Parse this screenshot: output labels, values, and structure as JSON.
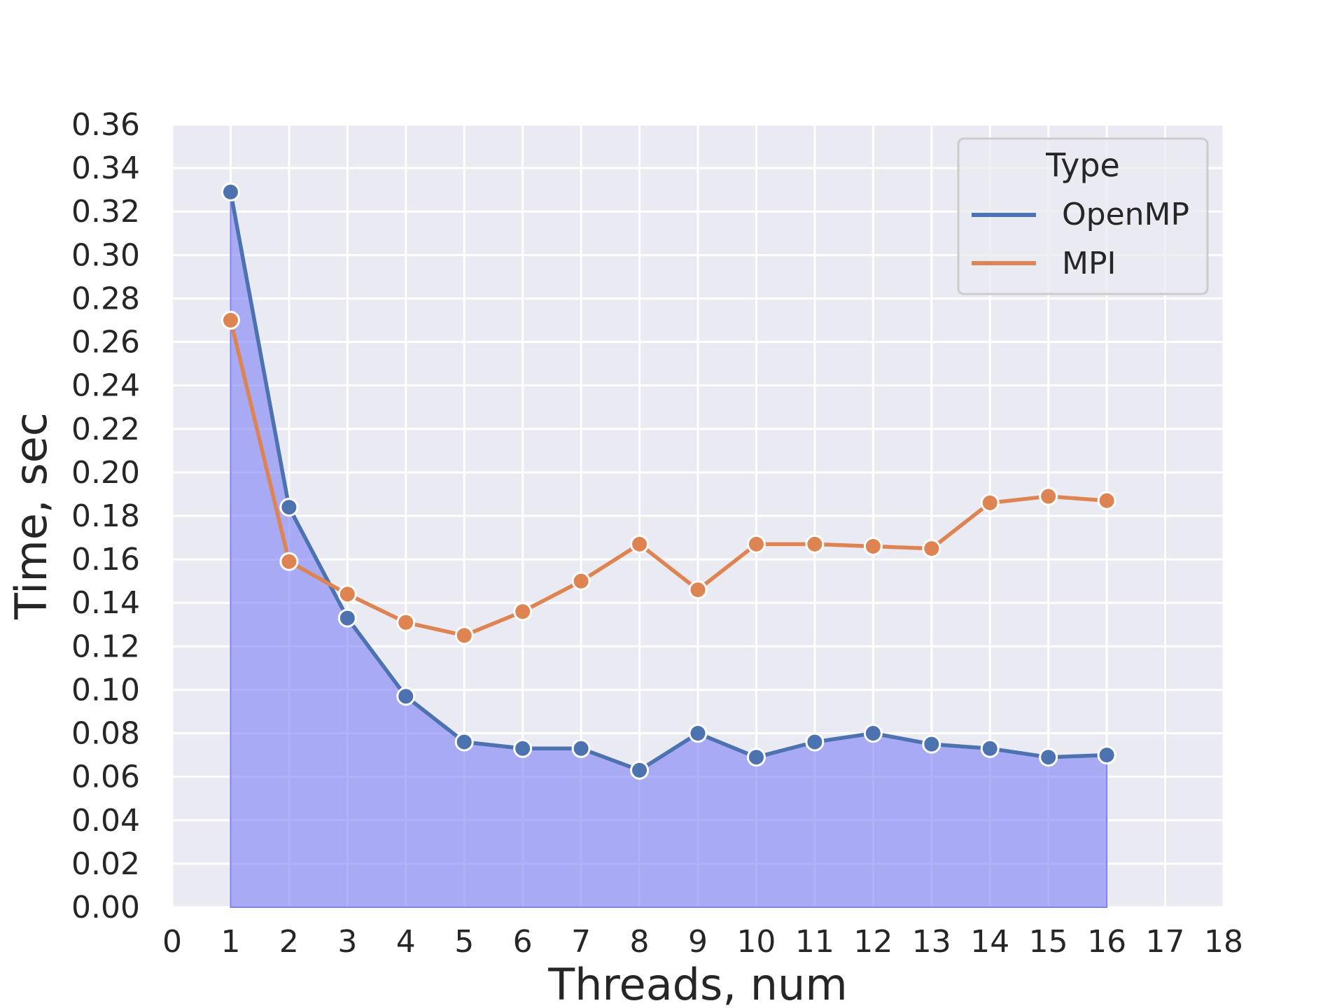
{
  "chart_data": {
    "type": "line",
    "title": "",
    "xlabel": "Threads, num",
    "ylabel": "Time, sec",
    "xlim": [
      0,
      18
    ],
    "ylim": [
      0,
      0.36
    ],
    "x_ticks": [
      "0",
      "1",
      "2",
      "3",
      "4",
      "5",
      "6",
      "7",
      "8",
      "9",
      "10",
      "11",
      "12",
      "13",
      "14",
      "15",
      "16",
      "17",
      "18"
    ],
    "y_ticks": [
      "0.00",
      "0.02",
      "0.04",
      "0.06",
      "0.08",
      "0.10",
      "0.12",
      "0.14",
      "0.16",
      "0.18",
      "0.20",
      "0.22",
      "0.24",
      "0.26",
      "0.28",
      "0.30",
      "0.32",
      "0.34",
      "0.36"
    ],
    "grid": true,
    "legend": {
      "title": "Type",
      "placement": "top-right"
    },
    "x": [
      1,
      2,
      3,
      4,
      5,
      6,
      7,
      8,
      9,
      10,
      11,
      12,
      13,
      14,
      15,
      16
    ],
    "series": [
      {
        "name": "OpenMP",
        "color": "#4c72b0",
        "filled_area": true,
        "fill_color": "#7b7ff5",
        "values": [
          0.329,
          0.184,
          0.133,
          0.097,
          0.076,
          0.073,
          0.073,
          0.063,
          0.08,
          0.069,
          0.076,
          0.08,
          0.075,
          0.073,
          0.069,
          0.07
        ]
      },
      {
        "name": "MPI",
        "color": "#dd8452",
        "filled_area": false,
        "values": [
          0.27,
          0.159,
          0.144,
          0.131,
          0.125,
          0.136,
          0.15,
          0.167,
          0.146,
          0.167,
          0.167,
          0.166,
          0.165,
          0.186,
          0.189,
          0.187
        ]
      }
    ]
  },
  "colors": {
    "plot_background": "#eaeaf2",
    "grid": "#ffffff",
    "legend_background": "#eaeaf2",
    "legend_border": "#cccccc"
  }
}
